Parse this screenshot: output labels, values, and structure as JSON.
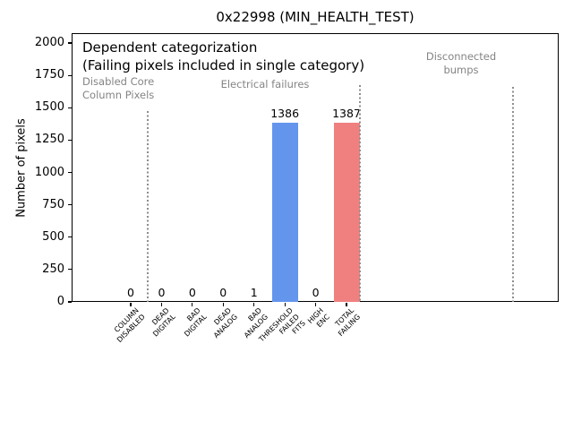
{
  "chart_data": {
    "type": "bar",
    "title": "0x22998 (MIN_HEALTH_TEST)",
    "xlabel": "",
    "ylabel": "Number of pixels",
    "ylim": [
      0,
      2075
    ],
    "yticks": [
      0,
      250,
      500,
      750,
      1000,
      1250,
      1500,
      1750,
      2000
    ],
    "grid": false,
    "legend": null,
    "categories": [
      "COLUMN DISABLED",
      "DEAD DIGITAL",
      "BAD DIGITAL",
      "DEAD ANALOG",
      "BAD ANALOG",
      "THRESHOLD FAILED FITS",
      "HIGH ENC",
      "TOTAL FAILING"
    ],
    "category_label_lines": [
      [
        "COLUMN",
        "DISABLED"
      ],
      [
        "DEAD",
        "DIGITAL"
      ],
      [
        "BAD",
        "DIGITAL"
      ],
      [
        "DEAD",
        "ANALOG"
      ],
      [
        "BAD",
        "ANALOG"
      ],
      [
        "THRESHOLD",
        "FAILED",
        "FITS"
      ],
      [
        "HIGH",
        "ENC"
      ],
      [
        "TOTAL",
        "FAILING"
      ]
    ],
    "values": [
      0,
      0,
      0,
      0,
      1,
      1386,
      0,
      1387
    ],
    "bar_value_labels": [
      "0",
      "0",
      "0",
      "0",
      "1",
      "1386",
      "0",
      "1387"
    ],
    "bar_colors": [
      null,
      null,
      null,
      null,
      null,
      "#6495ED",
      null,
      "#F08080"
    ],
    "default_bar_color": "#808080",
    "annotations": [
      {
        "text": "Dependent categorization\n(Failing pixels included in single category)",
        "color": "#000000",
        "x": 92,
        "y": 44,
        "align": "left",
        "font_px": 15,
        "line_height_px": 19.5
      },
      {
        "text": "Disabled Core\nColumn Pixels",
        "color": "#848484",
        "x": 92,
        "y": 84,
        "align": "left",
        "font_px": 11.5,
        "line_height_px": 14.5
      },
      {
        "text": "Electrical failures",
        "color": "#848484",
        "x": 296,
        "y": 87,
        "align": "center",
        "font_px": 11.5,
        "line_height_px": 14.5
      },
      {
        "text": "Disconnected\nbumps",
        "color": "#848484",
        "x": 515,
        "y": 56,
        "align": "center",
        "font_px": 11.5,
        "line_height_px": 14.5
      }
    ],
    "separators": [
      {
        "x": 165,
        "y_top": 124
      },
      {
        "x": 402,
        "y_top": 95
      },
      {
        "x": 573,
        "y_top": 97
      }
    ],
    "separator_color": "#8c8c8c"
  }
}
